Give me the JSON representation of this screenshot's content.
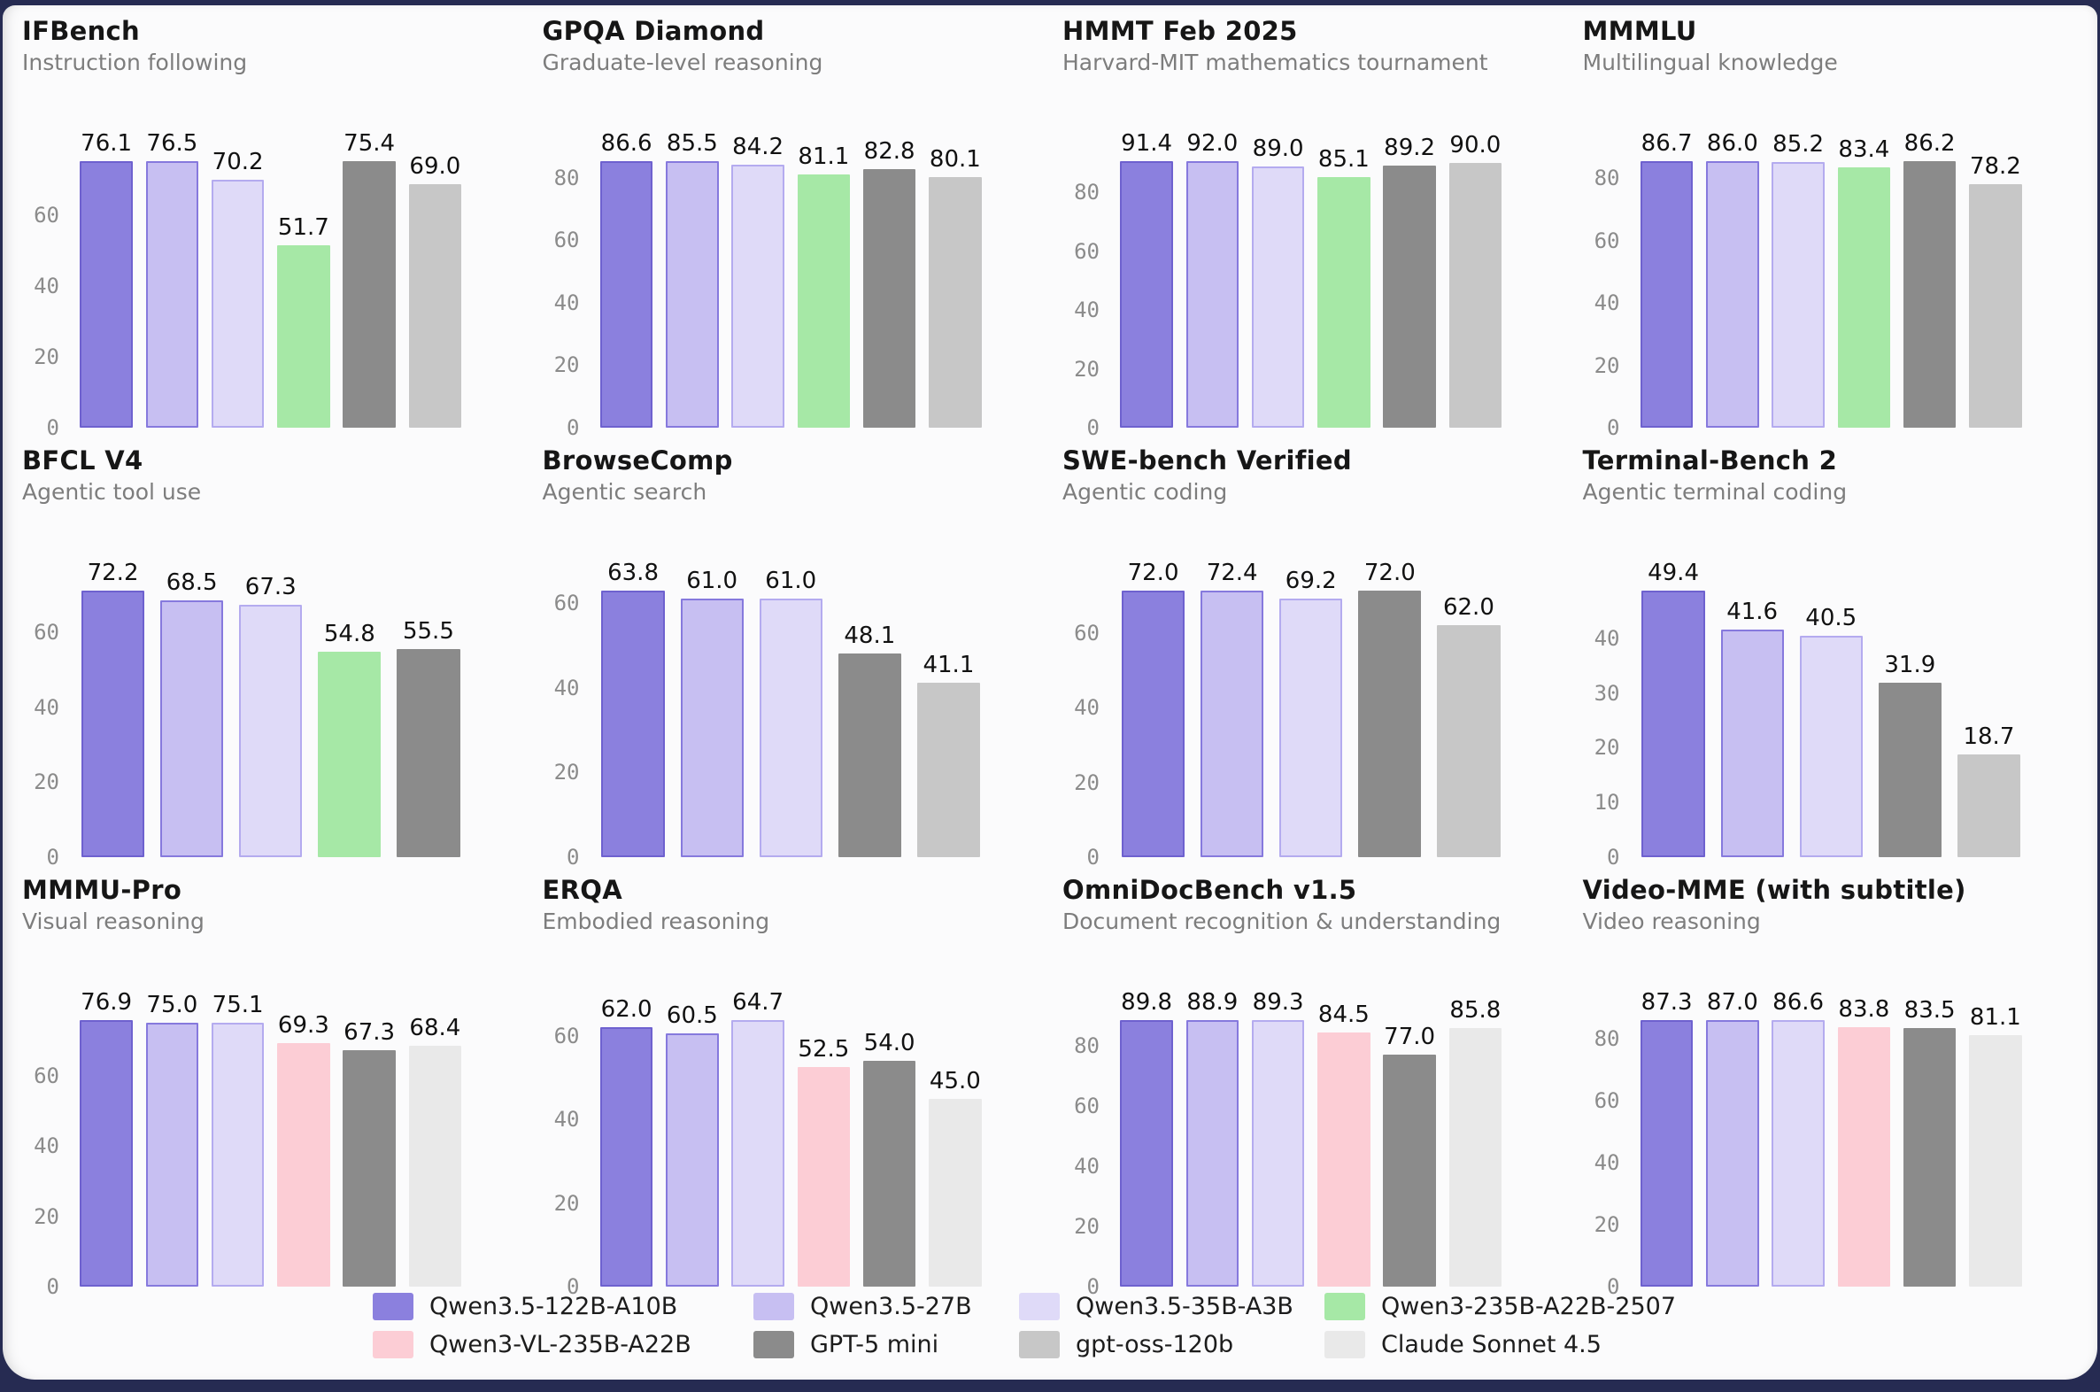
{
  "page": {
    "background_color": "#262b52",
    "card_color": "#fbfbfc"
  },
  "legend": {
    "items": [
      {
        "label": "Qwen3.5-122B-A10B",
        "color": "#8b80de",
        "border": "#6e61cf"
      },
      {
        "label": "Qwen3.5-27B",
        "color": "#c7bff2",
        "border": "#8679dd"
      },
      {
        "label": "Qwen3.5-35B-A3B",
        "color": "#dfdaf8",
        "border": "#b4abef"
      },
      {
        "label": "Qwen3-235B-A22B-2507",
        "color": "#a6e8a6",
        "border": null
      },
      {
        "label": "Qwen3-VL-235B-A22B",
        "color": "#fccdd5",
        "border": null
      },
      {
        "label": "GPT-5 mini",
        "color": "#8b8b8b",
        "border": null
      },
      {
        "label": "gpt-oss-120b",
        "color": "#c7c7c7",
        "border": null
      },
      {
        "label": "Claude Sonnet 4.5",
        "color": "#e9e9e9",
        "border": null
      }
    ]
  },
  "chart_data": [
    {
      "type": "bar",
      "title": "IFBench",
      "subtitle": "Instruction following",
      "yticks": [
        0,
        20,
        40,
        60
      ],
      "grid": false,
      "legend_position": "bottom-shared",
      "series": [
        {
          "model": "Qwen3.5-122B-A10B",
          "value": 76.1
        },
        {
          "model": "Qwen3.5-27B",
          "value": 76.5
        },
        {
          "model": "Qwen3.5-35B-A3B",
          "value": 70.2
        },
        {
          "model": "Qwen3-235B-A22B-2507",
          "value": 51.7
        },
        {
          "model": "GPT-5 mini",
          "value": 75.4
        },
        {
          "model": "gpt-oss-120b",
          "value": 69.0
        }
      ]
    },
    {
      "type": "bar",
      "title": "GPQA Diamond",
      "subtitle": "Graduate-level reasoning",
      "yticks": [
        0,
        20,
        40,
        60,
        80
      ],
      "grid": false,
      "legend_position": "bottom-shared",
      "series": [
        {
          "model": "Qwen3.5-122B-A10B",
          "value": 86.6
        },
        {
          "model": "Qwen3.5-27B",
          "value": 85.5
        },
        {
          "model": "Qwen3.5-35B-A3B",
          "value": 84.2
        },
        {
          "model": "Qwen3-235B-A22B-2507",
          "value": 81.1
        },
        {
          "model": "GPT-5 mini",
          "value": 82.8
        },
        {
          "model": "gpt-oss-120b",
          "value": 80.1
        }
      ]
    },
    {
      "type": "bar",
      "title": "HMMT Feb 2025",
      "subtitle": "Harvard-MIT mathematics tournament",
      "yticks": [
        0,
        20,
        40,
        60,
        80
      ],
      "grid": false,
      "legend_position": "bottom-shared",
      "series": [
        {
          "model": "Qwen3.5-122B-A10B",
          "value": 91.4
        },
        {
          "model": "Qwen3.5-27B",
          "value": 92.0
        },
        {
          "model": "Qwen3.5-35B-A3B",
          "value": 89.0
        },
        {
          "model": "Qwen3-235B-A22B-2507",
          "value": 85.1
        },
        {
          "model": "GPT-5 mini",
          "value": 89.2
        },
        {
          "model": "gpt-oss-120b",
          "value": 90.0
        }
      ]
    },
    {
      "type": "bar",
      "title": "MMMLU",
      "subtitle": "Multilingual knowledge",
      "yticks": [
        0,
        20,
        40,
        60,
        80
      ],
      "grid": false,
      "legend_position": "bottom-shared",
      "series": [
        {
          "model": "Qwen3.5-122B-A10B",
          "value": 86.7
        },
        {
          "model": "Qwen3.5-27B",
          "value": 86.0
        },
        {
          "model": "Qwen3.5-35B-A3B",
          "value": 85.2
        },
        {
          "model": "Qwen3-235B-A22B-2507",
          "value": 83.4
        },
        {
          "model": "GPT-5 mini",
          "value": 86.2
        },
        {
          "model": "gpt-oss-120b",
          "value": 78.2
        }
      ]
    },
    {
      "type": "bar",
      "title": "BFCL V4",
      "subtitle": "Agentic tool use",
      "yticks": [
        0,
        20,
        40,
        60
      ],
      "grid": false,
      "legend_position": "bottom-shared",
      "series": [
        {
          "model": "Qwen3.5-122B-A10B",
          "value": 72.2
        },
        {
          "model": "Qwen3.5-27B",
          "value": 68.5
        },
        {
          "model": "Qwen3.5-35B-A3B",
          "value": 67.3
        },
        {
          "model": "Qwen3-235B-A22B-2507",
          "value": 54.8
        },
        {
          "model": "GPT-5 mini",
          "value": 55.5
        }
      ]
    },
    {
      "type": "bar",
      "title": "BrowseComp",
      "subtitle": "Agentic search",
      "yticks": [
        0,
        20,
        40,
        60
      ],
      "grid": false,
      "legend_position": "bottom-shared",
      "series": [
        {
          "model": "Qwen3.5-122B-A10B",
          "value": 63.8
        },
        {
          "model": "Qwen3.5-27B",
          "value": 61.0
        },
        {
          "model": "Qwen3.5-35B-A3B",
          "value": 61.0
        },
        {
          "model": "GPT-5 mini",
          "value": 48.1
        },
        {
          "model": "gpt-oss-120b",
          "value": 41.1
        }
      ]
    },
    {
      "type": "bar",
      "title": "SWE-bench Verified",
      "subtitle": "Agentic coding",
      "yticks": [
        0,
        20,
        40,
        60
      ],
      "grid": false,
      "legend_position": "bottom-shared",
      "series": [
        {
          "model": "Qwen3.5-122B-A10B",
          "value": 72.0
        },
        {
          "model": "Qwen3.5-27B",
          "value": 72.4
        },
        {
          "model": "Qwen3.5-35B-A3B",
          "value": 69.2
        },
        {
          "model": "GPT-5 mini",
          "value": 72.0
        },
        {
          "model": "gpt-oss-120b",
          "value": 62.0
        }
      ]
    },
    {
      "type": "bar",
      "title": "Terminal-Bench 2",
      "subtitle": "Agentic terminal coding",
      "yticks": [
        0,
        10,
        20,
        30,
        40
      ],
      "grid": false,
      "legend_position": "bottom-shared",
      "series": [
        {
          "model": "Qwen3.5-122B-A10B",
          "value": 49.4
        },
        {
          "model": "Qwen3.5-27B",
          "value": 41.6
        },
        {
          "model": "Qwen3.5-35B-A3B",
          "value": 40.5
        },
        {
          "model": "GPT-5 mini",
          "value": 31.9
        },
        {
          "model": "gpt-oss-120b",
          "value": 18.7
        }
      ]
    },
    {
      "type": "bar",
      "title": "MMMU-Pro",
      "subtitle": "Visual reasoning",
      "yticks": [
        0,
        20,
        40,
        60
      ],
      "grid": false,
      "legend_position": "bottom-shared",
      "series": [
        {
          "model": "Qwen3.5-122B-A10B",
          "value": 76.9
        },
        {
          "model": "Qwen3.5-27B",
          "value": 75.0
        },
        {
          "model": "Qwen3.5-35B-A3B",
          "value": 75.1
        },
        {
          "model": "Qwen3-VL-235B-A22B",
          "value": 69.3
        },
        {
          "model": "GPT-5 mini",
          "value": 67.3
        },
        {
          "model": "Claude Sonnet 4.5",
          "value": 68.4
        }
      ]
    },
    {
      "type": "bar",
      "title": "ERQA",
      "subtitle": "Embodied reasoning",
      "yticks": [
        0,
        20,
        40,
        60
      ],
      "grid": false,
      "legend_position": "bottom-shared",
      "series": [
        {
          "model": "Qwen3.5-122B-A10B",
          "value": 62.0
        },
        {
          "model": "Qwen3.5-27B",
          "value": 60.5
        },
        {
          "model": "Qwen3.5-35B-A3B",
          "value": 64.7
        },
        {
          "model": "Qwen3-VL-235B-A22B",
          "value": 52.5
        },
        {
          "model": "GPT-5 mini",
          "value": 54.0
        },
        {
          "model": "Claude Sonnet 4.5",
          "value": 45.0
        }
      ]
    },
    {
      "type": "bar",
      "title": "OmniDocBench v1.5",
      "subtitle": "Document recognition & understanding",
      "yticks": [
        0,
        20,
        40,
        60,
        80
      ],
      "grid": false,
      "legend_position": "bottom-shared",
      "series": [
        {
          "model": "Qwen3.5-122B-A10B",
          "value": 89.8
        },
        {
          "model": "Qwen3.5-27B",
          "value": 88.9
        },
        {
          "model": "Qwen3.5-35B-A3B",
          "value": 89.3
        },
        {
          "model": "Qwen3-VL-235B-A22B",
          "value": 84.5
        },
        {
          "model": "GPT-5 mini",
          "value": 77.0
        },
        {
          "model": "Claude Sonnet 4.5",
          "value": 85.8
        }
      ]
    },
    {
      "type": "bar",
      "title": "Video-MME (with subtitle)",
      "subtitle": "Video reasoning",
      "yticks": [
        0,
        20,
        40,
        60,
        80
      ],
      "grid": false,
      "legend_position": "bottom-shared",
      "series": [
        {
          "model": "Qwen3.5-122B-A10B",
          "value": 87.3
        },
        {
          "model": "Qwen3.5-27B",
          "value": 87.0
        },
        {
          "model": "Qwen3.5-35B-A3B",
          "value": 86.6
        },
        {
          "model": "Qwen3-VL-235B-A22B",
          "value": 83.8
        },
        {
          "model": "GPT-5 mini",
          "value": 83.5
        },
        {
          "model": "Claude Sonnet 4.5",
          "value": 81.1
        }
      ]
    }
  ]
}
